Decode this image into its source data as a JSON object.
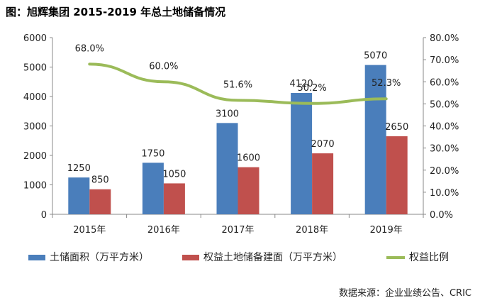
{
  "title": "图：旭辉集团 2015-2019 年总土地储备情况",
  "source": "数据来源：企业业绩公告、CRIC",
  "colors": {
    "series1": "#4a7ebb",
    "series2": "#c0504d",
    "line": "#9bbb59",
    "axis": "#888888"
  },
  "chart_data": {
    "type": "bar",
    "categories": [
      "2015年",
      "2016年",
      "2017年",
      "2018年",
      "2019年"
    ],
    "series": [
      {
        "name": "土储面积（万平方米）",
        "type": "bar",
        "axis": "left",
        "values": [
          1250,
          1750,
          3100,
          4120,
          5070
        ],
        "labels": [
          "1250",
          "1750",
          "3100",
          "4120",
          "5070"
        ]
      },
      {
        "name": "权益土地储备建面（万平方米）",
        "type": "bar",
        "axis": "left",
        "values": [
          850,
          1050,
          1600,
          2070,
          2650
        ],
        "labels": [
          "850",
          "1050",
          "1600",
          "2070",
          "2650"
        ]
      },
      {
        "name": "权益比例",
        "type": "line",
        "axis": "right",
        "values": [
          68.0,
          60.0,
          51.6,
          50.2,
          52.3
        ],
        "labels": [
          "68.0%",
          "60.0%",
          "51.6%",
          "50.2%",
          "52.3%"
        ]
      }
    ],
    "y_left": {
      "min": 0,
      "max": 6000,
      "step": 1000,
      "ticks": [
        "0",
        "1000",
        "2000",
        "3000",
        "4000",
        "5000",
        "6000"
      ]
    },
    "y_right": {
      "min": 0,
      "max": 80,
      "step": 10,
      "ticks": [
        "0.0%",
        "10.0%",
        "20.0%",
        "30.0%",
        "40.0%",
        "50.0%",
        "60.0%",
        "70.0%",
        "80.0%"
      ]
    },
    "grid": false,
    "legend_position": "bottom"
  }
}
